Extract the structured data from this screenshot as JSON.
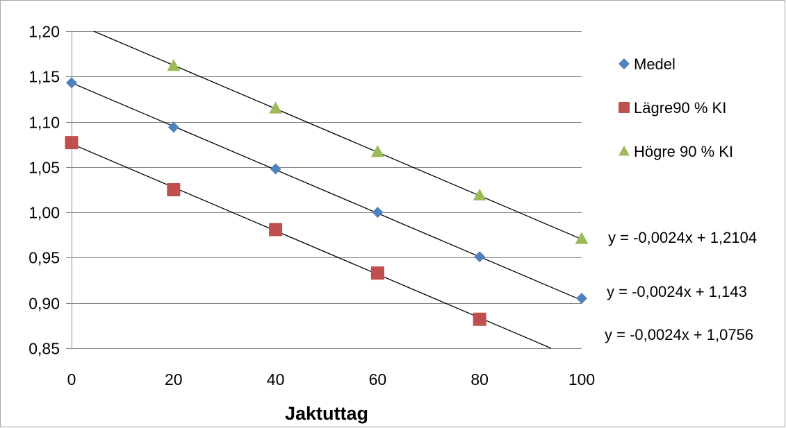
{
  "chart_data": {
    "type": "scatter",
    "title": "",
    "xlabel": "Jaktuttag",
    "ylabel": "",
    "xlim": [
      0,
      100
    ],
    "ylim": [
      0.85,
      1.2
    ],
    "xticks": [
      0,
      20,
      40,
      60,
      80,
      100
    ],
    "xtick_labels": [
      "0",
      "20",
      "40",
      "60",
      "80",
      "100"
    ],
    "yticks": [
      0.85,
      0.9,
      0.95,
      1.0,
      1.05,
      1.1,
      1.15,
      1.2
    ],
    "ytick_labels": [
      "0,85",
      "0,90",
      "0,95",
      "1,00",
      "1,05",
      "1,10",
      "1,15",
      "1,20"
    ],
    "grid": "horizontal",
    "legend_position": "right",
    "series": [
      {
        "name": "Medel",
        "marker": "diamond",
        "color": "#4f81bd",
        "x": [
          0,
          20,
          40,
          60,
          80,
          100
        ],
        "y": [
          1.143,
          1.094,
          1.048,
          1.0,
          0.951,
          0.905
        ],
        "trendline": {
          "slope": -0.0024,
          "intercept": 1.143,
          "equation": "y = -0,0024x + 1,143"
        }
      },
      {
        "name": "Lägre90 % KI",
        "marker": "square",
        "color": "#c0504d",
        "x": [
          0,
          20,
          40,
          60,
          80
        ],
        "y": [
          1.077,
          1.025,
          0.981,
          0.933,
          0.882
        ],
        "trendline": {
          "slope": -0.0024,
          "intercept": 1.0756,
          "equation": "y = -0,0024x + 1,0756"
        }
      },
      {
        "name": "Högre 90 % KI",
        "marker": "triangle",
        "color": "#9bbb59",
        "x": [
          20,
          40,
          60,
          80,
          100
        ],
        "y": [
          1.162,
          1.115,
          1.067,
          1.019,
          0.971
        ],
        "trendline": {
          "slope": -0.0024,
          "intercept": 1.2104,
          "equation": "y = -0,0024x + 1,2104"
        }
      }
    ]
  }
}
